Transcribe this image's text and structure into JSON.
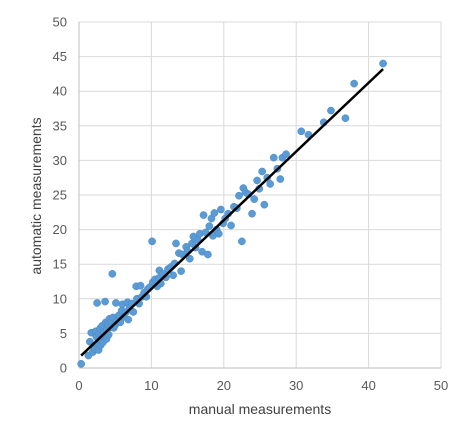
{
  "chart_data": {
    "type": "scatter",
    "xlabel": "manual measurements",
    "ylabel": "automatic measurements",
    "xlim": [
      0,
      50
    ],
    "ylim": [
      0,
      50
    ],
    "xticks": [
      0,
      10,
      20,
      30,
      40,
      50
    ],
    "yticks": [
      0,
      5,
      10,
      15,
      20,
      25,
      30,
      35,
      40,
      45,
      50
    ],
    "grid": true,
    "legend": "none",
    "colors": {
      "points": "#5b9bd5",
      "trendline": "#000000",
      "grid": "#d9d9d9"
    },
    "trendline": {
      "x": [
        0.3,
        42
      ],
      "y": [
        1.8,
        43.2
      ]
    },
    "points": [
      [
        0.3,
        0.6
      ],
      [
        1.3,
        1.8
      ],
      [
        1.5,
        3.8
      ],
      [
        1.7,
        5.1
      ],
      [
        1.9,
        2.3
      ],
      [
        2.0,
        3.2
      ],
      [
        2.2,
        2.7
      ],
      [
        2.3,
        5.3
      ],
      [
        2.4,
        4.5
      ],
      [
        2.5,
        9.4
      ],
      [
        2.6,
        3.6
      ],
      [
        2.7,
        2.6
      ],
      [
        2.8,
        4.9
      ],
      [
        2.9,
        5.7
      ],
      [
        3.0,
        3.3
      ],
      [
        3.1,
        4.1
      ],
      [
        3.2,
        6.1
      ],
      [
        3.3,
        3.7
      ],
      [
        3.4,
        4.6
      ],
      [
        3.5,
        5.2
      ],
      [
        3.6,
        9.6
      ],
      [
        3.7,
        6.6
      ],
      [
        3.8,
        4.2
      ],
      [
        3.9,
        5.5
      ],
      [
        4.0,
        6.3
      ],
      [
        4.1,
        4.8
      ],
      [
        4.2,
        7.1
      ],
      [
        4.3,
        5.9
      ],
      [
        4.5,
        6.8
      ],
      [
        4.6,
        13.6
      ],
      [
        4.7,
        7.3
      ],
      [
        4.8,
        5.8
      ],
      [
        5.0,
        6.2
      ],
      [
        5.1,
        9.4
      ],
      [
        5.3,
        6.9
      ],
      [
        5.5,
        7.6
      ],
      [
        5.7,
        6.6
      ],
      [
        5.9,
        8.3
      ],
      [
        6.0,
        9.2
      ],
      [
        6.2,
        7.4
      ],
      [
        6.5,
        8.1
      ],
      [
        6.7,
        9.5
      ],
      [
        6.8,
        7.0
      ],
      [
        7.0,
        8.8
      ],
      [
        7.3,
        9.3
      ],
      [
        7.5,
        8.1
      ],
      [
        7.9,
        11.8
      ],
      [
        8.0,
        10.0
      ],
      [
        8.3,
        9.3
      ],
      [
        8.5,
        11.9
      ],
      [
        8.7,
        10.3
      ],
      [
        9.0,
        10.9
      ],
      [
        9.3,
        10.3
      ],
      [
        9.5,
        11.4
      ],
      [
        9.8,
        11.7
      ],
      [
        10.1,
        18.3
      ],
      [
        10.2,
        12.4
      ],
      [
        10.5,
        12.8
      ],
      [
        10.8,
        11.8
      ],
      [
        11.0,
        13.0
      ],
      [
        11.1,
        14.1
      ],
      [
        11.3,
        12.2
      ],
      [
        11.6,
        13.6
      ],
      [
        12.0,
        13.1
      ],
      [
        12.3,
        14.3
      ],
      [
        12.7,
        14.6
      ],
      [
        13.0,
        13.4
      ],
      [
        13.2,
        15.1
      ],
      [
        13.4,
        18.0
      ],
      [
        13.8,
        16.6
      ],
      [
        14.1,
        14.0
      ],
      [
        14.3,
        16.4
      ],
      [
        14.8,
        17.5
      ],
      [
        15.0,
        16.9
      ],
      [
        15.3,
        15.8
      ],
      [
        15.6,
        18.0
      ],
      [
        15.8,
        19.0
      ],
      [
        16.1,
        17.4
      ],
      [
        16.4,
        18.5
      ],
      [
        16.7,
        19.4
      ],
      [
        17.0,
        16.8
      ],
      [
        17.2,
        22.1
      ],
      [
        17.5,
        19.6
      ],
      [
        17.8,
        16.4
      ],
      [
        18.0,
        20.5
      ],
      [
        18.3,
        21.6
      ],
      [
        18.5,
        19.1
      ],
      [
        18.7,
        22.4
      ],
      [
        19.0,
        20.0
      ],
      [
        19.3,
        19.4
      ],
      [
        19.6,
        22.9
      ],
      [
        19.9,
        20.9
      ],
      [
        20.2,
        21.6
      ],
      [
        20.6,
        22.3
      ],
      [
        21.0,
        20.6
      ],
      [
        21.4,
        23.3
      ],
      [
        21.8,
        23.1
      ],
      [
        22.1,
        24.9
      ],
      [
        22.5,
        18.3
      ],
      [
        22.7,
        26.0
      ],
      [
        23.0,
        25.4
      ],
      [
        23.4,
        25.1
      ],
      [
        23.9,
        22.3
      ],
      [
        24.2,
        24.4
      ],
      [
        24.6,
        27.1
      ],
      [
        24.9,
        25.9
      ],
      [
        25.3,
        28.4
      ],
      [
        25.6,
        23.6
      ],
      [
        26.0,
        27.5
      ],
      [
        26.4,
        26.6
      ],
      [
        26.9,
        30.4
      ],
      [
        27.4,
        28.8
      ],
      [
        27.8,
        27.3
      ],
      [
        28.1,
        30.4
      ],
      [
        28.6,
        30.9
      ],
      [
        30.7,
        34.2
      ],
      [
        31.7,
        33.7
      ],
      [
        33.8,
        35.5
      ],
      [
        34.8,
        37.2
      ],
      [
        36.8,
        36.1
      ],
      [
        38.0,
        41.1
      ],
      [
        42.0,
        44.0
      ]
    ]
  }
}
